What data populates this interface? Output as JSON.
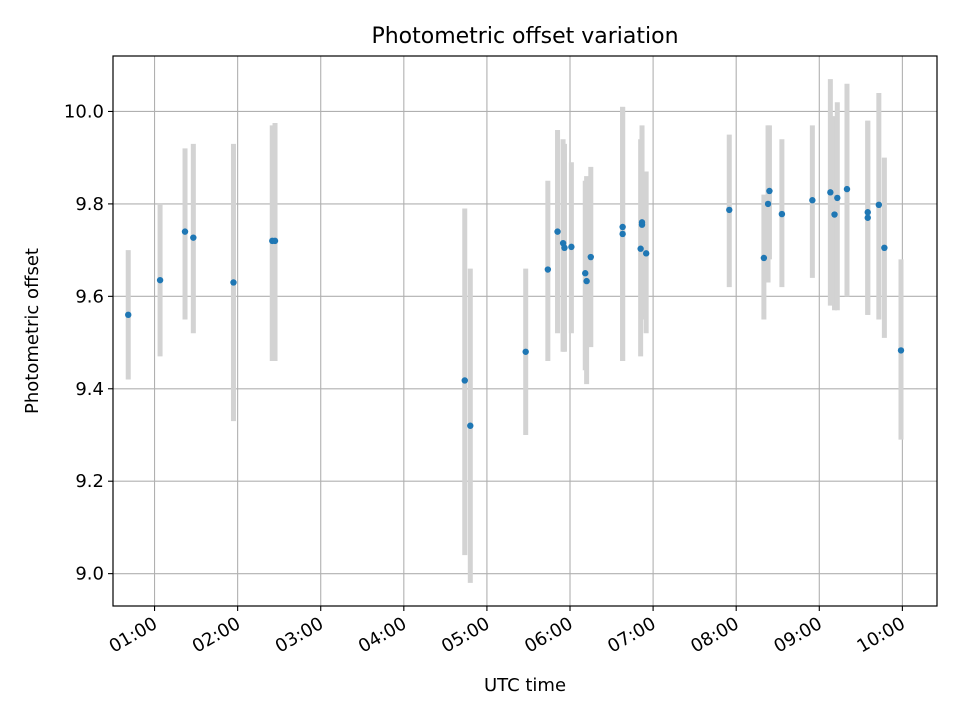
{
  "chart_data": {
    "type": "scatter",
    "title": "Photometric offset variation",
    "xlabel": "UTC time",
    "ylabel": "Photometric offset",
    "xlim": [
      "00:30",
      "10:25"
    ],
    "ylim": [
      8.93,
      10.12
    ],
    "grid": true,
    "x_ticks": [
      "01:00",
      "02:00",
      "03:00",
      "04:00",
      "05:00",
      "06:00",
      "07:00",
      "08:00",
      "09:00",
      "10:00"
    ],
    "y_ticks": [
      9.0,
      9.2,
      9.4,
      9.6,
      9.8,
      10.0
    ],
    "y_tick_labels": [
      "9.0",
      "9.2",
      "9.4",
      "9.6",
      "9.8",
      "10.0"
    ],
    "colors": {
      "point": "#1f77b4",
      "errorbar": "#d3d3d3",
      "grid": "#b0b0b0"
    },
    "series": [
      {
        "points": [
          {
            "x": "00:41",
            "y": 9.56,
            "ylo": 9.42,
            "yhi": 9.7
          },
          {
            "x": "01:04",
            "y": 9.635,
            "ylo": 9.47,
            "yhi": 9.8
          },
          {
            "x": "01:22",
            "y": 9.74,
            "ylo": 9.55,
            "yhi": 9.92
          },
          {
            "x": "01:28",
            "y": 9.727,
            "ylo": 9.52,
            "yhi": 9.93
          },
          {
            "x": "01:57",
            "y": 9.63,
            "ylo": 9.33,
            "yhi": 9.93
          },
          {
            "x": "02:25",
            "y": 9.72,
            "ylo": 9.46,
            "yhi": 9.97
          },
          {
            "x": "02:27",
            "y": 9.72,
            "ylo": 9.46,
            "yhi": 9.975
          },
          {
            "x": "04:44",
            "y": 9.418,
            "ylo": 9.04,
            "yhi": 9.79
          },
          {
            "x": "04:48",
            "y": 9.32,
            "ylo": 8.98,
            "yhi": 9.66
          },
          {
            "x": "05:28",
            "y": 9.48,
            "ylo": 9.3,
            "yhi": 9.66
          },
          {
            "x": "05:44",
            "y": 9.658,
            "ylo": 9.46,
            "yhi": 9.85
          },
          {
            "x": "05:51",
            "y": 9.74,
            "ylo": 9.52,
            "yhi": 9.96
          },
          {
            "x": "05:55",
            "y": 9.715,
            "ylo": 9.48,
            "yhi": 9.94
          },
          {
            "x": "05:56",
            "y": 9.705,
            "ylo": 9.48,
            "yhi": 9.93
          },
          {
            "x": "06:01",
            "y": 9.707,
            "ylo": 9.52,
            "yhi": 9.89
          },
          {
            "x": "06:11",
            "y": 9.65,
            "ylo": 9.44,
            "yhi": 9.85
          },
          {
            "x": "06:12",
            "y": 9.633,
            "ylo": 9.41,
            "yhi": 9.86
          },
          {
            "x": "06:15",
            "y": 9.685,
            "ylo": 9.49,
            "yhi": 9.88
          },
          {
            "x": "06:38",
            "y": 9.735,
            "ylo": 9.46,
            "yhi": 10.01
          },
          {
            "x": "06:38",
            "y": 9.75,
            "ylo": 9.46,
            "yhi": 10.01
          },
          {
            "x": "06:51",
            "y": 9.703,
            "ylo": 9.47,
            "yhi": 9.94
          },
          {
            "x": "06:52",
            "y": 9.755,
            "ylo": 9.55,
            "yhi": 9.96
          },
          {
            "x": "06:52",
            "y": 9.76,
            "ylo": 9.55,
            "yhi": 9.97
          },
          {
            "x": "06:55",
            "y": 9.693,
            "ylo": 9.52,
            "yhi": 9.87
          },
          {
            "x": "07:55",
            "y": 9.787,
            "ylo": 9.62,
            "yhi": 9.95
          },
          {
            "x": "08:20",
            "y": 9.683,
            "ylo": 9.55,
            "yhi": 9.82
          },
          {
            "x": "08:23",
            "y": 9.8,
            "ylo": 9.63,
            "yhi": 9.97
          },
          {
            "x": "08:24",
            "y": 9.828,
            "ylo": 9.68,
            "yhi": 9.97
          },
          {
            "x": "08:33",
            "y": 9.778,
            "ylo": 9.62,
            "yhi": 9.94
          },
          {
            "x": "08:55",
            "y": 9.808,
            "ylo": 9.64,
            "yhi": 9.97
          },
          {
            "x": "09:08",
            "y": 9.825,
            "ylo": 9.58,
            "yhi": 10.07
          },
          {
            "x": "09:11",
            "y": 9.777,
            "ylo": 9.57,
            "yhi": 9.99
          },
          {
            "x": "09:13",
            "y": 9.813,
            "ylo": 9.57,
            "yhi": 10.02
          },
          {
            "x": "09:20",
            "y": 9.832,
            "ylo": 9.6,
            "yhi": 10.06
          },
          {
            "x": "09:35",
            "y": 9.782,
            "ylo": 9.56,
            "yhi": 9.98
          },
          {
            "x": "09:35",
            "y": 9.77,
            "ylo": 9.56,
            "yhi": 9.98
          },
          {
            "x": "09:43",
            "y": 9.798,
            "ylo": 9.55,
            "yhi": 10.04
          },
          {
            "x": "09:47",
            "y": 9.705,
            "ylo": 9.51,
            "yhi": 9.9
          },
          {
            "x": "09:59",
            "y": 9.483,
            "ylo": 9.29,
            "yhi": 9.68
          }
        ]
      }
    ]
  }
}
